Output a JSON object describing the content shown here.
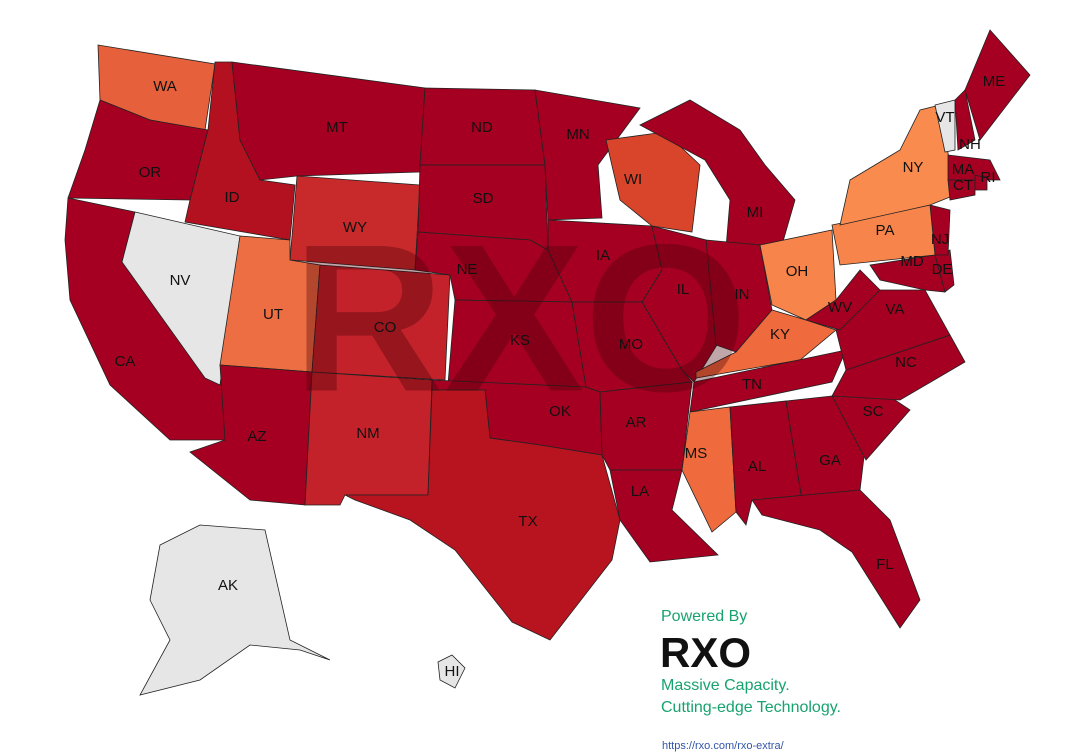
{
  "map": {
    "states": [
      {
        "label": "WA",
        "color": "#e6603b"
      },
      {
        "label": "OR",
        "color": "#a50021"
      },
      {
        "label": "CA",
        "color": "#a50021"
      },
      {
        "label": "NV",
        "color": "#e6e6e6"
      },
      {
        "label": "ID",
        "color": "#b3111f"
      },
      {
        "label": "MT",
        "color": "#a50021"
      },
      {
        "label": "WY",
        "color": "#c8292a"
      },
      {
        "label": "UT",
        "color": "#ee6e43"
      },
      {
        "label": "CO",
        "color": "#c3222a"
      },
      {
        "label": "AZ",
        "color": "#a50021"
      },
      {
        "label": "NM",
        "color": "#c3222a"
      },
      {
        "label": "ND",
        "color": "#a50021"
      },
      {
        "label": "SD",
        "color": "#a50021"
      },
      {
        "label": "NE",
        "color": "#a50021"
      },
      {
        "label": "KS",
        "color": "#a50021"
      },
      {
        "label": "OK",
        "color": "#a50021"
      },
      {
        "label": "TX",
        "color": "#b8141f"
      },
      {
        "label": "MN",
        "color": "#a50021"
      },
      {
        "label": "IA",
        "color": "#a50021"
      },
      {
        "label": "MO",
        "color": "#a50021"
      },
      {
        "label": "AR",
        "color": "#a50021"
      },
      {
        "label": "LA",
        "color": "#a50021"
      },
      {
        "label": "WI",
        "color": "#d8452b"
      },
      {
        "label": "IL",
        "color": "#a50021"
      },
      {
        "label": "MI",
        "color": "#a50021"
      },
      {
        "label": "IN",
        "color": "#a50021"
      },
      {
        "label": "OH",
        "color": "#f6844b"
      },
      {
        "label": "KY",
        "color": "#ef6b3d"
      },
      {
        "label": "TN",
        "color": "#a50021"
      },
      {
        "label": "MS",
        "color": "#ef6b3d"
      },
      {
        "label": "AL",
        "color": "#a50021"
      },
      {
        "label": "GA",
        "color": "#a50021"
      },
      {
        "label": "FL",
        "color": "#a50021"
      },
      {
        "label": "SC",
        "color": "#a50021"
      },
      {
        "label": "NC",
        "color": "#a50021"
      },
      {
        "label": "VA",
        "color": "#a50021"
      },
      {
        "label": "WV",
        "color": "#a50021"
      },
      {
        "label": "MD",
        "color": "#a50021"
      },
      {
        "label": "DE",
        "color": "#a50021"
      },
      {
        "label": "NJ",
        "color": "#a50021"
      },
      {
        "label": "PA",
        "color": "#f6844b"
      },
      {
        "label": "NY",
        "color": "#f98b4f"
      },
      {
        "label": "VT",
        "color": "#e6e6e6"
      },
      {
        "label": "NH",
        "color": "#a50021"
      },
      {
        "label": "ME",
        "color": "#a50021"
      },
      {
        "label": "MA",
        "color": "#a50021"
      },
      {
        "label": "CT",
        "color": "#a50021"
      },
      {
        "label": "RI",
        "color": "#a50021"
      },
      {
        "label": "AK",
        "color": "#e6e6e6"
      },
      {
        "label": "HI",
        "color": "#e6e6e6"
      }
    ],
    "watermark": "RXO"
  },
  "branding": {
    "powered_by": "Powered By",
    "logo": "RXO",
    "tagline_1": "Massive Capacity.",
    "tagline_2": "Cutting-edge Technology.",
    "url": "https://rxo.com/rxo-extra/"
  }
}
